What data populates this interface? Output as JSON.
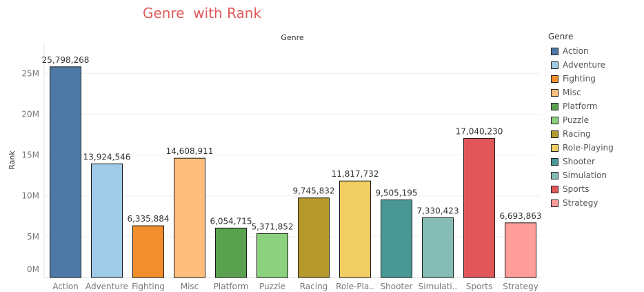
{
  "chart_title": "Genre  with Rank",
  "chart_data": {
    "type": "bar",
    "title": "Genre  with Rank",
    "column_header": "Genre",
    "xlabel": "",
    "ylabel": "Rank",
    "ylim": [
      0,
      27500000
    ],
    "yticks": [
      0,
      5000000,
      10000000,
      15000000,
      20000000,
      25000000
    ],
    "ytick_labels": [
      "0M",
      "5M",
      "10M",
      "15M",
      "20M",
      "25M"
    ],
    "categories": [
      "Action",
      "Adventure",
      "Fighting",
      "Misc",
      "Platform",
      "Puzzle",
      "Racing",
      "Role-Pla..",
      "Shooter",
      "Simulati..",
      "Sports",
      "Strategy"
    ],
    "values": [
      25798268,
      13924546,
      6335884,
      14608911,
      6054715,
      5371852,
      9745832,
      11817732,
      9505195,
      7330423,
      17040230,
      6693863
    ],
    "value_labels": [
      "25,798,268",
      "13,924,546",
      "6,335,884",
      "14,608,911",
      "6,054,715",
      "5,371,852",
      "9,745,832",
      "11,817,732",
      "9,505,195",
      "7,330,423",
      "17,040,230",
      "6,693,863"
    ],
    "colors": [
      "#4e79a7",
      "#a0cbe8",
      "#f28e2b",
      "#ffbe7d",
      "#59a14f",
      "#8cd17d",
      "#b6992d",
      "#f1ce63",
      "#499894",
      "#86bcb6",
      "#e15759",
      "#ff9d9a"
    ],
    "grid": true,
    "legend_position": "right"
  },
  "legend": {
    "title": "Genre",
    "items": [
      "Action",
      "Adventure",
      "Fighting",
      "Misc",
      "Platform",
      "Puzzle",
      "Racing",
      "Role-Playing",
      "Shooter",
      "Simulation",
      "Sports",
      "Strategy"
    ]
  }
}
